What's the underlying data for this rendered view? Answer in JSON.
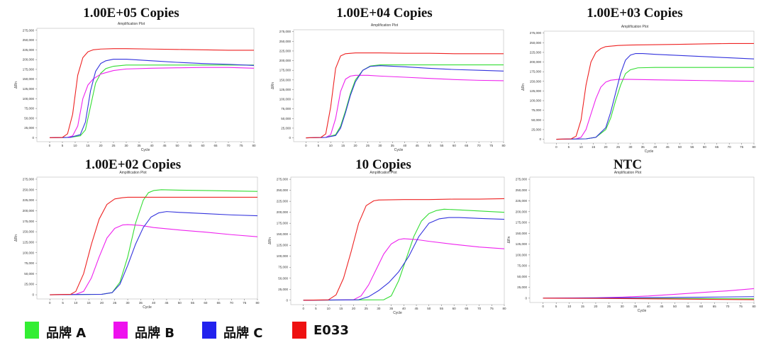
{
  "colors": {
    "brandA": "#33dd33",
    "brandB": "#ee22ee",
    "brandC": "#3333dd",
    "e033": "#ee2222"
  },
  "legend": [
    {
      "label": "品牌 A",
      "color": "#33ee33"
    },
    {
      "label": "品牌 B",
      "color": "#ee11ee"
    },
    {
      "label": "品牌 C",
      "color": "#2222ee"
    },
    {
      "label": "E033",
      "color": "#ee1111"
    }
  ],
  "chart_data": [
    {
      "type": "line",
      "title": "1.00E+05 Copies",
      "subtitle": "Amplification Plot",
      "xlabel": "Cycle",
      "ylabel": "ΔRn",
      "xlim": [
        -5,
        80
      ],
      "ylim": [
        -10000,
        280000
      ],
      "xticks": [
        0,
        5,
        10,
        15,
        20,
        25,
        30,
        35,
        40,
        45,
        50,
        55,
        60,
        65,
        70,
        75,
        80
      ],
      "yticks": [
        0,
        25000,
        50000,
        75000,
        100000,
        125000,
        150000,
        175000,
        200000,
        225000,
        250000,
        275000
      ],
      "series": [
        {
          "x": [
            0,
            8,
            12,
            14,
            16,
            18,
            20,
            22,
            25,
            30,
            40,
            50,
            60,
            70,
            80
          ],
          "y": [
            0,
            1000,
            5000,
            20000,
            80000,
            140000,
            165000,
            177000,
            183000,
            186000,
            186000,
            186000,
            186000,
            186000,
            186000
          ]
        },
        {
          "x": [
            0,
            7,
            9,
            11,
            13,
            15,
            17,
            20,
            25,
            30,
            40,
            50,
            60,
            70,
            80
          ],
          "y": [
            0,
            1000,
            5000,
            30000,
            100000,
            135000,
            150000,
            163000,
            172000,
            176000,
            178000,
            179000,
            180000,
            180000,
            178000
          ]
        },
        {
          "x": [
            0,
            8,
            12,
            14,
            16,
            18,
            20,
            22,
            25,
            30,
            40,
            50,
            60,
            70,
            80
          ],
          "y": [
            0,
            1000,
            8000,
            40000,
            120000,
            170000,
            190000,
            197000,
            201000,
            201000,
            197000,
            193000,
            190000,
            188000,
            185000
          ]
        },
        {
          "x": [
            0,
            5,
            7,
            9,
            11,
            13,
            15,
            17,
            20,
            25,
            30,
            40,
            50,
            60,
            70,
            80
          ],
          "y": [
            0,
            1000,
            10000,
            60000,
            160000,
            205000,
            220000,
            225000,
            227000,
            228000,
            228000,
            227000,
            226000,
            225000,
            224000,
            224000
          ]
        }
      ]
    },
    {
      "type": "line",
      "title": "1.00E+04 Copies",
      "subtitle": "Amplification Plot",
      "xlabel": "Cycle",
      "ylabel": "ΔRn",
      "xlim": [
        -5,
        80
      ],
      "ylim": [
        -10000,
        280000
      ],
      "xticks": [
        0,
        5,
        10,
        15,
        20,
        25,
        30,
        35,
        40,
        45,
        50,
        55,
        60,
        65,
        70,
        75,
        80
      ],
      "yticks": [
        0,
        25000,
        50000,
        75000,
        100000,
        125000,
        150000,
        175000,
        200000,
        225000,
        250000,
        275000
      ],
      "series": [
        {
          "x": [
            0,
            8,
            12,
            14,
            16,
            18,
            20,
            23,
            26,
            30,
            40,
            50,
            60,
            70,
            80
          ],
          "y": [
            0,
            1000,
            8000,
            30000,
            70000,
            115000,
            150000,
            175000,
            186000,
            189000,
            189000,
            189000,
            189000,
            189000,
            189000
          ]
        },
        {
          "x": [
            0,
            8,
            10,
            12,
            14,
            16,
            18,
            20,
            25,
            30,
            40,
            50,
            60,
            70,
            80
          ],
          "y": [
            0,
            1000,
            8000,
            50000,
            120000,
            152000,
            160000,
            162000,
            162000,
            160000,
            157000,
            154000,
            151000,
            149000,
            148000
          ]
        },
        {
          "x": [
            0,
            8,
            12,
            14,
            16,
            18,
            20,
            23,
            26,
            30,
            40,
            50,
            60,
            70,
            80
          ],
          "y": [
            0,
            1000,
            6000,
            25000,
            65000,
            110000,
            145000,
            175000,
            185000,
            187000,
            184000,
            180000,
            177000,
            175000,
            173000
          ]
        },
        {
          "x": [
            0,
            6,
            8,
            10,
            12,
            14,
            16,
            20,
            25,
            30,
            40,
            50,
            60,
            70,
            80
          ],
          "y": [
            0,
            1000,
            10000,
            80000,
            180000,
            212000,
            218000,
            220000,
            220000,
            220000,
            219000,
            219000,
            218000,
            218000,
            218000
          ]
        }
      ]
    },
    {
      "type": "line",
      "title": "1.00E+03 Copies",
      "subtitle": "Amplification Plot",
      "xlabel": "Cycle",
      "ylabel": "ΔRn",
      "xlim": [
        -5,
        80
      ],
      "ylim": [
        -10000,
        280000
      ],
      "xticks": [
        0,
        5,
        10,
        15,
        20,
        25,
        30,
        35,
        40,
        45,
        50,
        55,
        60,
        65,
        70,
        75,
        80
      ],
      "yticks": [
        0,
        25000,
        50000,
        75000,
        100000,
        125000,
        150000,
        175000,
        200000,
        225000,
        250000,
        275000
      ],
      "series": [
        {
          "x": [
            0,
            12,
            16,
            20,
            22,
            24,
            26,
            28,
            30,
            33,
            40,
            50,
            60,
            70,
            80
          ],
          "y": [
            0,
            1000,
            5000,
            25000,
            55000,
            100000,
            140000,
            170000,
            180000,
            185000,
            186000,
            186000,
            186000,
            186000,
            186000
          ]
        },
        {
          "x": [
            0,
            8,
            10,
            12,
            14,
            16,
            18,
            20,
            22,
            25,
            30,
            40,
            50,
            60,
            70,
            80
          ],
          "y": [
            0,
            1000,
            5000,
            25000,
            65000,
            105000,
            135000,
            148000,
            153000,
            155000,
            155000,
            154000,
            153000,
            152000,
            151000,
            150000
          ]
        },
        {
          "x": [
            0,
            12,
            16,
            20,
            22,
            24,
            26,
            28,
            30,
            32,
            35,
            40,
            50,
            60,
            70,
            80
          ],
          "y": [
            0,
            1000,
            5000,
            30000,
            70000,
            120000,
            170000,
            205000,
            218000,
            222000,
            222000,
            220000,
            217000,
            214000,
            211000,
            208000
          ]
        },
        {
          "x": [
            0,
            6,
            8,
            10,
            12,
            14,
            16,
            18,
            20,
            25,
            30,
            40,
            50,
            60,
            70,
            80
          ],
          "y": [
            0,
            1000,
            8000,
            50000,
            140000,
            200000,
            225000,
            235000,
            240000,
            243000,
            244000,
            245000,
            246000,
            247000,
            248000,
            248000
          ]
        }
      ]
    },
    {
      "type": "line",
      "title": "1.00E+02 Copies",
      "subtitle": "Amplification Plot",
      "xlabel": "Cycle",
      "ylabel": "ΔRn",
      "xlim": [
        -5,
        80
      ],
      "ylim": [
        -10000,
        280000
      ],
      "xticks": [
        0,
        5,
        10,
        15,
        20,
        25,
        30,
        35,
        40,
        45,
        50,
        55,
        60,
        65,
        70,
        75,
        80
      ],
      "yticks": [
        0,
        25000,
        50000,
        75000,
        100000,
        125000,
        150000,
        175000,
        200000,
        225000,
        250000,
        275000
      ],
      "series": [
        {
          "x": [
            0,
            20,
            24,
            27,
            30,
            33,
            36,
            38,
            40,
            43,
            50,
            60,
            70,
            80
          ],
          "y": [
            0,
            1000,
            5000,
            30000,
            90000,
            170000,
            225000,
            243000,
            248000,
            250000,
            249000,
            248000,
            247000,
            246000
          ]
        },
        {
          "x": [
            0,
            10,
            13,
            16,
            19,
            22,
            25,
            28,
            30,
            35,
            40,
            50,
            60,
            70,
            80
          ],
          "y": [
            0,
            1000,
            8000,
            40000,
            90000,
            135000,
            158000,
            166000,
            167000,
            165000,
            160000,
            154000,
            149000,
            143000,
            138000
          ]
        },
        {
          "x": [
            0,
            20,
            24,
            27,
            30,
            33,
            36,
            39,
            42,
            45,
            50,
            60,
            70,
            80
          ],
          "y": [
            0,
            1000,
            5000,
            25000,
            70000,
            120000,
            160000,
            185000,
            195000,
            198000,
            196000,
            193000,
            190000,
            188000
          ]
        },
        {
          "x": [
            0,
            8,
            10,
            13,
            16,
            19,
            22,
            25,
            28,
            30,
            40,
            50,
            60,
            70,
            80
          ],
          "y": [
            0,
            1000,
            8000,
            50000,
            120000,
            180000,
            215000,
            228000,
            231000,
            232000,
            232000,
            232000,
            232000,
            232000,
            232000
          ]
        }
      ]
    },
    {
      "type": "line",
      "title": "10 Copies",
      "subtitle": "Amplification Plot",
      "xlabel": "Cycle",
      "ylabel": "ΔRn",
      "xlim": [
        -5,
        80
      ],
      "ylim": [
        -10000,
        280000
      ],
      "xticks": [
        0,
        5,
        10,
        15,
        20,
        25,
        30,
        35,
        40,
        45,
        50,
        55,
        60,
        65,
        70,
        75,
        80
      ],
      "yticks": [
        0,
        25000,
        50000,
        75000,
        100000,
        125000,
        150000,
        175000,
        200000,
        225000,
        250000,
        275000
      ],
      "series": [
        {
          "x": [
            0,
            32,
            35,
            38,
            41,
            44,
            47,
            50,
            53,
            56,
            60,
            70,
            80
          ],
          "y": [
            0,
            1000,
            10000,
            45000,
            95000,
            145000,
            180000,
            197000,
            204000,
            207000,
            206000,
            203000,
            200000
          ]
        },
        {
          "x": [
            0,
            20,
            23,
            26,
            29,
            32,
            35,
            38,
            40,
            45,
            50,
            60,
            70,
            80
          ],
          "y": [
            0,
            1000,
            10000,
            35000,
            70000,
            105000,
            128000,
            138000,
            140000,
            138000,
            134000,
            127000,
            121000,
            117000
          ]
        },
        {
          "x": [
            0,
            22,
            26,
            30,
            34,
            38,
            42,
            46,
            50,
            54,
            58,
            62,
            70,
            80
          ],
          "y": [
            0,
            1000,
            8000,
            22000,
            40000,
            65000,
            100000,
            145000,
            175000,
            185000,
            188000,
            188000,
            186000,
            184000
          ]
        },
        {
          "x": [
            0,
            10,
            13,
            16,
            19,
            22,
            25,
            28,
            30,
            40,
            50,
            60,
            70,
            80
          ],
          "y": [
            0,
            1000,
            12000,
            50000,
            110000,
            175000,
            215000,
            226000,
            228000,
            229000,
            229000,
            230000,
            230000,
            231000
          ]
        }
      ]
    },
    {
      "type": "line",
      "title": "NTC",
      "subtitle": "Amplification Plot",
      "xlabel": "Cycle",
      "ylabel": "ΔRn",
      "xlim": [
        -5,
        80
      ],
      "ylim": [
        -10000,
        280000
      ],
      "xticks": [
        0,
        5,
        10,
        15,
        20,
        25,
        30,
        35,
        40,
        45,
        50,
        55,
        60,
        65,
        70,
        75,
        80
      ],
      "yticks": [
        0,
        25000,
        50000,
        75000,
        100000,
        125000,
        150000,
        175000,
        200000,
        225000,
        250000,
        275000
      ],
      "series": [
        {
          "x": [
            0,
            20,
            40,
            60,
            80
          ],
          "y": [
            0,
            0,
            -500,
            -1000,
            -1500
          ]
        },
        {
          "x": [
            0,
            20,
            30,
            40,
            50,
            60,
            70,
            80
          ],
          "y": [
            0,
            1000,
            2500,
            5000,
            9000,
            13000,
            17000,
            22000
          ]
        },
        {
          "x": [
            0,
            20,
            40,
            60,
            80
          ],
          "y": [
            0,
            500,
            1200,
            2200,
            3500
          ]
        },
        {
          "x": [
            0,
            20,
            40,
            60,
            80
          ],
          "y": [
            0,
            -500,
            -1500,
            -2500,
            -3500
          ]
        }
      ]
    }
  ]
}
